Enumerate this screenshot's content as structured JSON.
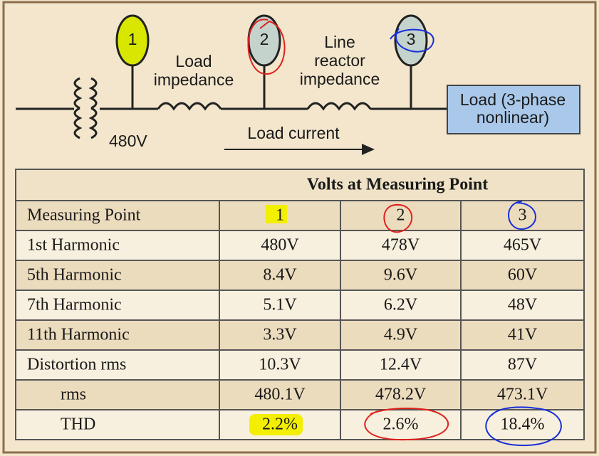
{
  "diagram": {
    "points": [
      "1",
      "2",
      "3"
    ],
    "load_impedance": [
      "Load",
      "impedance"
    ],
    "line_reactor_impedance": [
      "Line",
      "reactor",
      "impedance"
    ],
    "load": [
      "Load (3-phase",
      "nonlinear)"
    ],
    "source_voltage": "480V",
    "load_current": "Load current"
  },
  "table": {
    "title": "Volts at Measuring Point",
    "header": [
      "Measuring Point",
      "1",
      "2",
      "3"
    ],
    "rows": [
      [
        "1st Harmonic",
        "480V",
        "478V",
        "465V"
      ],
      [
        "5th Harmonic",
        "8.4V",
        "9.6V",
        "60V"
      ],
      [
        "7th Harmonic",
        "5.1V",
        "6.2V",
        "48V"
      ],
      [
        "11th Harmonic",
        "3.3V",
        "4.9V",
        "41V"
      ],
      [
        "Distortion rms",
        "10.3V",
        "12.4V",
        "87V"
      ],
      [
        "rms",
        "480.1V",
        "478.2V",
        "473.1V"
      ],
      [
        "THD",
        "2.2%",
        "2.6%",
        "18.4%"
      ]
    ]
  }
}
